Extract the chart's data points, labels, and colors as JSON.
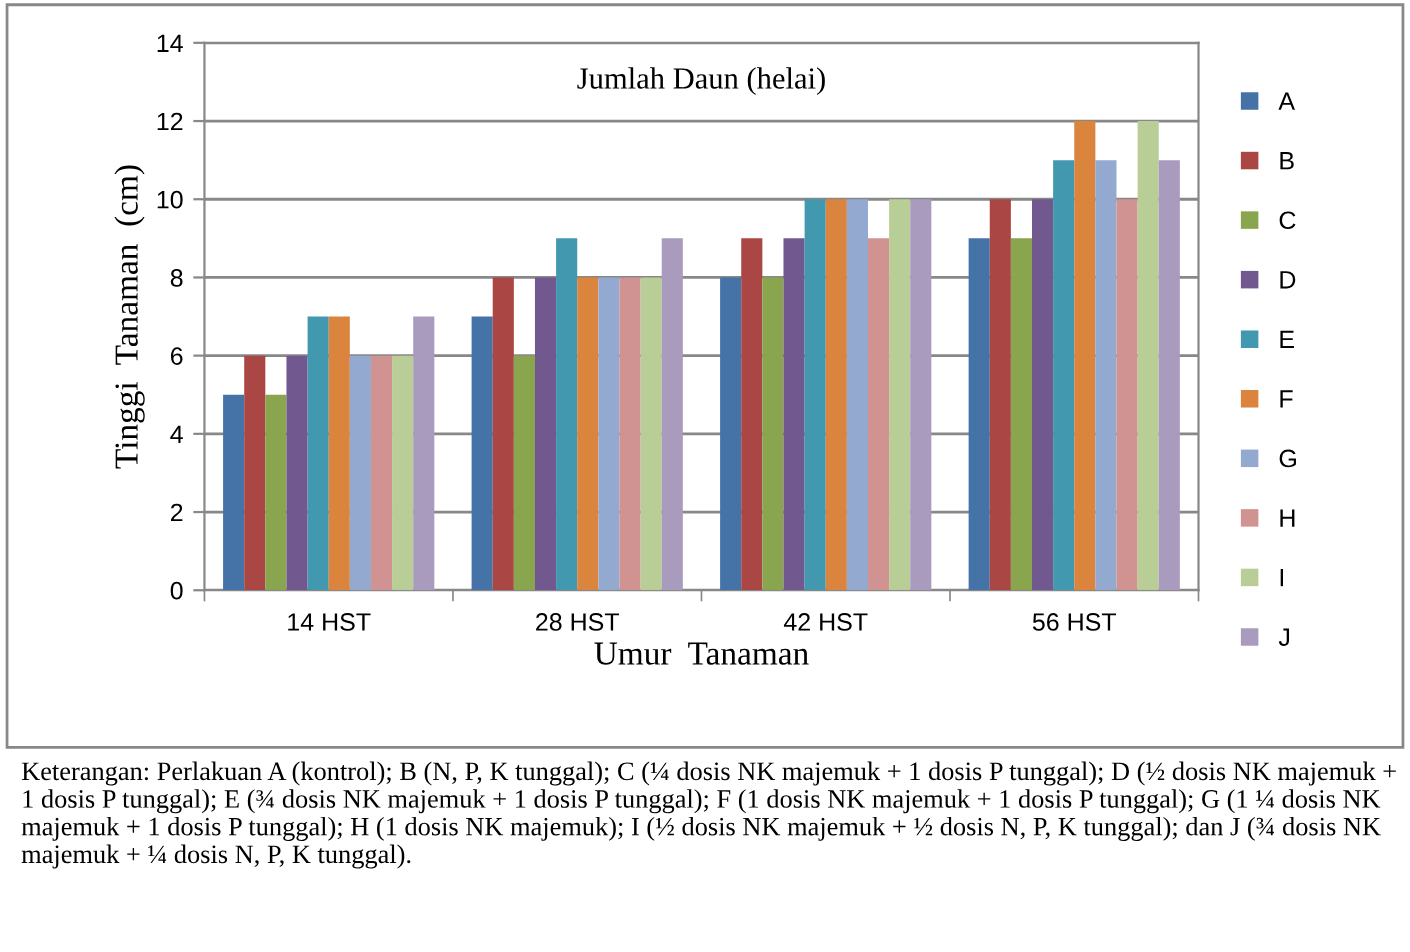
{
  "chart_data": {
    "type": "bar",
    "title": "Jumlah Daun (helai)",
    "xlabel": "Umur  Tanaman",
    "ylabel": "Tinggi  Tanaman  (cm)",
    "categories": [
      "14 HST",
      "28 HST",
      "42 HST",
      "56 HST"
    ],
    "series": [
      {
        "name": "A",
        "color": "#4572a7",
        "values": [
          5,
          7,
          8,
          9
        ]
      },
      {
        "name": "B",
        "color": "#aa4643",
        "values": [
          6,
          8,
          9,
          10
        ]
      },
      {
        "name": "C",
        "color": "#89a54e",
        "values": [
          5,
          6,
          8,
          9
        ]
      },
      {
        "name": "D",
        "color": "#71588f",
        "values": [
          6,
          8,
          9,
          10
        ]
      },
      {
        "name": "E",
        "color": "#4198af",
        "values": [
          7,
          9,
          10,
          11
        ]
      },
      {
        "name": "F",
        "color": "#db843d",
        "values": [
          7,
          8,
          10,
          12
        ]
      },
      {
        "name": "G",
        "color": "#93a9cf",
        "values": [
          6,
          8,
          10,
          11
        ]
      },
      {
        "name": "H",
        "color": "#d19392",
        "values": [
          6,
          8,
          9,
          10
        ]
      },
      {
        "name": "I",
        "color": "#b9cd96",
        "values": [
          6,
          8,
          10,
          12
        ]
      },
      {
        "name": "J",
        "color": "#a99bbd",
        "values": [
          7,
          9,
          10,
          11
        ]
      }
    ],
    "ylim": [
      0,
      14
    ],
    "yticks": [
      0,
      2,
      4,
      6,
      8,
      10,
      12,
      14
    ],
    "grid": "y",
    "legend": "right",
    "annotations": [
      "Keterangan: Perlakuan A (kontrol); B (N, P, K tunggal); C (¼ dosis NK majemuk + 1 dosis P tunggal); D (½ dosis NK majemuk + 1 dosis P tunggal); E (¾ dosis NK majemuk + 1 dosis P tunggal); F (1 dosis NK majemuk + 1 dosis P tunggal); G (1 ¼ dosis NK majemuk + 1 dosis P tunggal); H (1 dosis NK majemuk); I (½ dosis NK majemuk + ½ dosis N, P, K tunggal); dan J (¾ dosis NK majemuk + ¼ dosis N, P, K tunggal)."
    ]
  }
}
